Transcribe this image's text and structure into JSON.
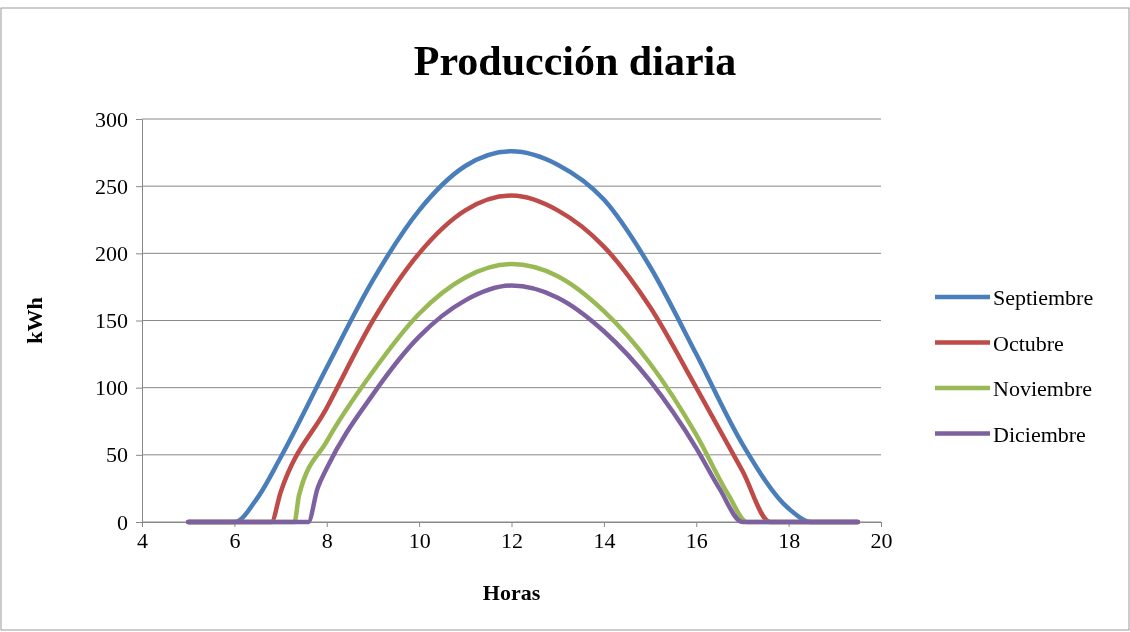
{
  "chart_data": {
    "type": "line",
    "title": "Producción diaria",
    "xlabel": "Horas",
    "ylabel": "kWh",
    "xlim": [
      4,
      20
    ],
    "xticks": [
      4,
      6,
      8,
      10,
      12,
      14,
      16,
      18,
      20
    ],
    "ylim": [
      0,
      300
    ],
    "yticks": [
      0,
      50,
      100,
      150,
      200,
      250,
      300
    ],
    "grid": "y",
    "legend": "right",
    "marker": "none",
    "line_style": "solid",
    "series": [
      {
        "name": "Septiembre",
        "color": "#4a7ebb",
        "x": [
          5,
          6,
          6.5,
          7,
          8,
          9,
          10,
          11,
          12,
          13,
          14,
          15,
          16,
          17,
          18,
          18.5,
          19.5
        ],
        "values": [
          0,
          0,
          18,
          48,
          115,
          180,
          232,
          265,
          276,
          266,
          240,
          190,
          125,
          58,
          10,
          0,
          0
        ]
      },
      {
        "name": "Octubre",
        "color": "#be4b48",
        "x": [
          5,
          6.8,
          7,
          8,
          9,
          10,
          11,
          12,
          13,
          14,
          15,
          16,
          17,
          17.6,
          19.5
        ],
        "values": [
          0,
          0,
          22,
          85,
          150,
          200,
          232,
          243,
          232,
          205,
          160,
          100,
          38,
          0,
          0
        ]
      },
      {
        "name": "Noviembre",
        "color": "#98b954",
        "x": [
          5,
          7.3,
          7.4,
          8,
          9,
          10,
          11,
          12,
          13,
          14,
          15,
          16,
          16.7,
          17.1,
          19.5
        ],
        "values": [
          0,
          0,
          20,
          60,
          112,
          155,
          182,
          192,
          183,
          157,
          118,
          65,
          20,
          0,
          0
        ]
      },
      {
        "name": "Diciembre",
        "color": "#7d60a0",
        "x": [
          5,
          7.6,
          7.8,
          8,
          9,
          10,
          11,
          12,
          13,
          14,
          15,
          16,
          16.5,
          17,
          19.5
        ],
        "values": [
          0,
          0,
          25,
          40,
          95,
          138,
          165,
          176,
          167,
          142,
          105,
          55,
          25,
          0,
          0
        ]
      }
    ]
  }
}
